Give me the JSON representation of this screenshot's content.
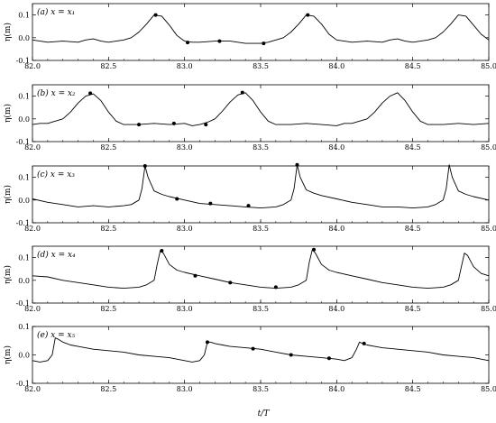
{
  "chart_data": {
    "type": "line",
    "xlabel": "t/T",
    "xlim": [
      82.0,
      85.0
    ],
    "xticks": [
      82.0,
      82.5,
      83.0,
      83.5,
      84.0,
      84.5,
      85.0
    ],
    "xtick_labels": [
      "82.0",
      "82.5",
      "83.0",
      "83.5",
      "84.0",
      "84.5",
      "85.0"
    ],
    "panels": [
      {
        "label": "(a) x = x₁",
        "ylabel": "η(m)",
        "ylim": [
          -0.1,
          0.15
        ],
        "yticks": [
          -0.1,
          0,
          0.1
        ],
        "ytick_labels": [
          "-0.1",
          "0.0",
          "0.1"
        ],
        "series": [
          {
            "x": [
              82.0,
              82.1,
              82.2,
              82.3,
              82.35,
              82.4,
              82.45,
              82.5,
              82.55,
              82.6,
              82.65,
              82.7,
              82.75,
              82.8,
              82.85,
              82.9,
              82.95,
              83.0,
              83.05,
              83.1,
              83.2,
              83.3,
              83.35,
              83.4,
              83.45,
              83.5,
              83.55,
              83.6,
              83.65,
              83.7,
              83.75,
              83.8,
              83.85,
              83.9,
              83.95,
              84.0,
              84.05,
              84.1,
              84.2,
              84.3,
              84.35,
              84.4,
              84.45,
              84.5,
              84.55,
              84.6,
              84.65,
              84.7,
              84.75,
              84.8,
              84.85,
              84.9,
              84.95,
              85.0
            ],
            "y": [
              -0.01,
              -0.02,
              -0.015,
              -0.02,
              -0.01,
              -0.005,
              -0.015,
              -0.02,
              -0.015,
              -0.01,
              0.0,
              0.025,
              0.06,
              0.1,
              0.095,
              0.055,
              0.01,
              -0.015,
              -0.02,
              -0.02,
              -0.015,
              -0.015,
              -0.02,
              -0.025,
              -0.025,
              -0.025,
              -0.02,
              -0.01,
              0.0,
              0.025,
              0.06,
              0.1,
              0.095,
              0.06,
              0.015,
              -0.01,
              -0.015,
              -0.02,
              -0.015,
              -0.02,
              -0.01,
              -0.005,
              -0.015,
              -0.02,
              -0.015,
              -0.01,
              0.0,
              0.025,
              0.06,
              0.1,
              0.095,
              0.055,
              0.015,
              -0.01
            ]
          }
        ],
        "markers": [
          [
            82.81,
            0.1
          ],
          [
            83.02,
            -0.021
          ],
          [
            83.23,
            -0.015
          ],
          [
            83.52,
            -0.025
          ],
          [
            83.81,
            0.1
          ]
        ]
      },
      {
        "label": "(b) x = x₂",
        "ylabel": "η(m)",
        "ylim": [
          -0.1,
          0.15
        ],
        "yticks": [
          -0.1,
          0,
          0.1
        ],
        "ytick_labels": [
          "-0.1",
          "0.0",
          "0.1"
        ],
        "series": [
          {
            "x": [
              82.0,
              82.05,
              82.1,
              82.15,
              82.2,
              82.25,
              82.3,
              82.35,
              82.4,
              82.45,
              82.5,
              82.55,
              82.6,
              82.7,
              82.8,
              82.9,
              83.0,
              83.05,
              83.1,
              83.15,
              83.2,
              83.25,
              83.3,
              83.35,
              83.4,
              83.45,
              83.5,
              83.55,
              83.6,
              83.7,
              83.8,
              83.9,
              84.0,
              84.05,
              84.1,
              84.15,
              84.2,
              84.25,
              84.3,
              84.35,
              84.4,
              84.45,
              84.5,
              84.55,
              84.6,
              84.7,
              84.8,
              84.9,
              85.0
            ],
            "y": [
              -0.025,
              -0.02,
              -0.02,
              -0.01,
              0.0,
              0.03,
              0.07,
              0.1,
              0.11,
              0.08,
              0.03,
              -0.01,
              -0.025,
              -0.025,
              -0.02,
              -0.025,
              -0.02,
              -0.03,
              -0.025,
              -0.015,
              0.0,
              0.035,
              0.075,
              0.105,
              0.115,
              0.08,
              0.03,
              -0.01,
              -0.025,
              -0.025,
              -0.02,
              -0.025,
              -0.03,
              -0.02,
              -0.02,
              -0.01,
              0.0,
              0.03,
              0.07,
              0.1,
              0.115,
              0.08,
              0.03,
              -0.01,
              -0.025,
              -0.025,
              -0.02,
              -0.025,
              -0.02
            ]
          }
        ],
        "markers": [
          [
            82.38,
            0.113
          ],
          [
            82.7,
            -0.025
          ],
          [
            82.93,
            -0.02
          ],
          [
            83.14,
            -0.025
          ],
          [
            83.38,
            0.116
          ]
        ]
      },
      {
        "label": "(c) x = x₃",
        "ylabel": "η(m)",
        "ylim": [
          -0.1,
          0.15
        ],
        "yticks": [
          -0.1,
          0,
          0.1
        ],
        "ytick_labels": [
          "-0.1",
          "0.0",
          "0.1"
        ],
        "series": [
          {
            "x": [
              82.0,
              82.1,
              82.2,
              82.3,
              82.4,
              82.5,
              82.6,
              82.65,
              82.7,
              82.72,
              82.74,
              82.76,
              82.8,
              82.85,
              82.9,
              83.0,
              83.1,
              83.2,
              83.3,
              83.4,
              83.5,
              83.6,
              83.65,
              83.7,
              83.72,
              83.74,
              83.76,
              83.8,
              83.85,
              83.9,
              84.0,
              84.1,
              84.2,
              84.3,
              84.4,
              84.5,
              84.6,
              84.65,
              84.7,
              84.72,
              84.74,
              84.76,
              84.8,
              84.85,
              84.9,
              85.0
            ],
            "y": [
              0.005,
              -0.01,
              -0.02,
              -0.03,
              -0.025,
              -0.03,
              -0.025,
              -0.02,
              0.0,
              0.05,
              0.15,
              0.1,
              0.04,
              0.025,
              0.015,
              0.0,
              -0.015,
              -0.02,
              -0.025,
              -0.03,
              -0.035,
              -0.03,
              -0.02,
              0.0,
              0.05,
              0.155,
              0.1,
              0.045,
              0.03,
              0.02,
              0.005,
              -0.01,
              -0.02,
              -0.03,
              -0.03,
              -0.035,
              -0.03,
              -0.02,
              0.0,
              0.05,
              0.155,
              0.1,
              0.04,
              0.025,
              0.015,
              0.0
            ]
          }
        ],
        "markers": [
          [
            82.74,
            0.15
          ],
          [
            82.95,
            0.005
          ],
          [
            83.17,
            -0.015
          ],
          [
            83.42,
            -0.025
          ],
          [
            83.74,
            0.155
          ]
        ]
      },
      {
        "label": "(d) x = x₄",
        "ylabel": "η(m)",
        "ylim": [
          -0.1,
          0.15
        ],
        "yticks": [
          -0.1,
          0,
          0.1
        ],
        "ytick_labels": [
          "-0.1",
          "0.0",
          "0.1"
        ],
        "series": [
          {
            "x": [
              82.0,
              82.1,
              82.2,
              82.3,
              82.4,
              82.5,
              82.6,
              82.7,
              82.75,
              82.8,
              82.82,
              82.84,
              82.86,
              82.9,
              82.95,
              83.0,
              83.1,
              83.2,
              83.3,
              83.4,
              83.5,
              83.6,
              83.7,
              83.75,
              83.8,
              83.82,
              83.84,
              83.86,
              83.9,
              83.95,
              84.0,
              84.1,
              84.2,
              84.3,
              84.4,
              84.5,
              84.6,
              84.7,
              84.75,
              84.8,
              84.82,
              84.84,
              84.86,
              84.9,
              84.95,
              85.0
            ],
            "y": [
              0.02,
              0.015,
              0.0,
              -0.01,
              -0.02,
              -0.03,
              -0.035,
              -0.03,
              -0.02,
              0.0,
              0.07,
              0.13,
              0.12,
              0.07,
              0.045,
              0.035,
              0.02,
              0.005,
              -0.01,
              -0.02,
              -0.03,
              -0.035,
              -0.03,
              -0.02,
              0.0,
              0.08,
              0.135,
              0.12,
              0.07,
              0.045,
              0.035,
              0.02,
              0.005,
              -0.01,
              -0.02,
              -0.03,
              -0.035,
              -0.03,
              -0.02,
              0.0,
              0.06,
              0.12,
              0.11,
              0.06,
              0.03,
              0.02
            ]
          }
        ],
        "markers": [
          [
            82.85,
            0.13
          ],
          [
            83.07,
            0.02
          ],
          [
            83.3,
            -0.01
          ],
          [
            83.6,
            -0.03
          ],
          [
            83.85,
            0.135
          ]
        ]
      },
      {
        "label": "(e) x = x₅",
        "ylabel": "η(m)",
        "ylim": [
          -0.1,
          0.1
        ],
        "yticks": [
          -0.1,
          0,
          0.1
        ],
        "ytick_labels": [
          "-0.1",
          "0.0",
          "0.1"
        ],
        "series": [
          {
            "x": [
              82.0,
              82.05,
              82.1,
              82.13,
              82.15,
              82.17,
              82.2,
              82.25,
              82.3,
              82.4,
              82.5,
              82.6,
              82.7,
              82.8,
              82.9,
              83.0,
              83.05,
              83.1,
              83.13,
              83.15,
              83.17,
              83.2,
              83.25,
              83.3,
              83.4,
              83.5,
              83.6,
              83.7,
              83.8,
              83.9,
              84.0,
              84.05,
              84.1,
              84.13,
              84.15,
              84.17,
              84.2,
              84.25,
              84.3,
              84.4,
              84.5,
              84.6,
              84.7,
              84.8,
              84.9,
              85.0
            ],
            "y": [
              -0.02,
              -0.025,
              -0.02,
              0.0,
              0.06,
              0.055,
              0.045,
              0.035,
              0.03,
              0.02,
              0.015,
              0.01,
              0.0,
              -0.005,
              -0.01,
              -0.02,
              -0.025,
              -0.02,
              0.0,
              0.045,
              0.045,
              0.04,
              0.035,
              0.03,
              0.025,
              0.02,
              0.01,
              0.0,
              -0.005,
              -0.01,
              -0.015,
              -0.02,
              -0.01,
              0.02,
              0.045,
              0.04,
              0.035,
              0.03,
              0.025,
              0.02,
              0.015,
              0.01,
              0.0,
              -0.005,
              -0.01,
              -0.02
            ]
          }
        ],
        "markers": [
          [
            83.15,
            0.045
          ],
          [
            83.45,
            0.022
          ],
          [
            83.7,
            0.0
          ],
          [
            83.95,
            -0.012
          ],
          [
            84.18,
            0.04
          ]
        ]
      }
    ]
  }
}
